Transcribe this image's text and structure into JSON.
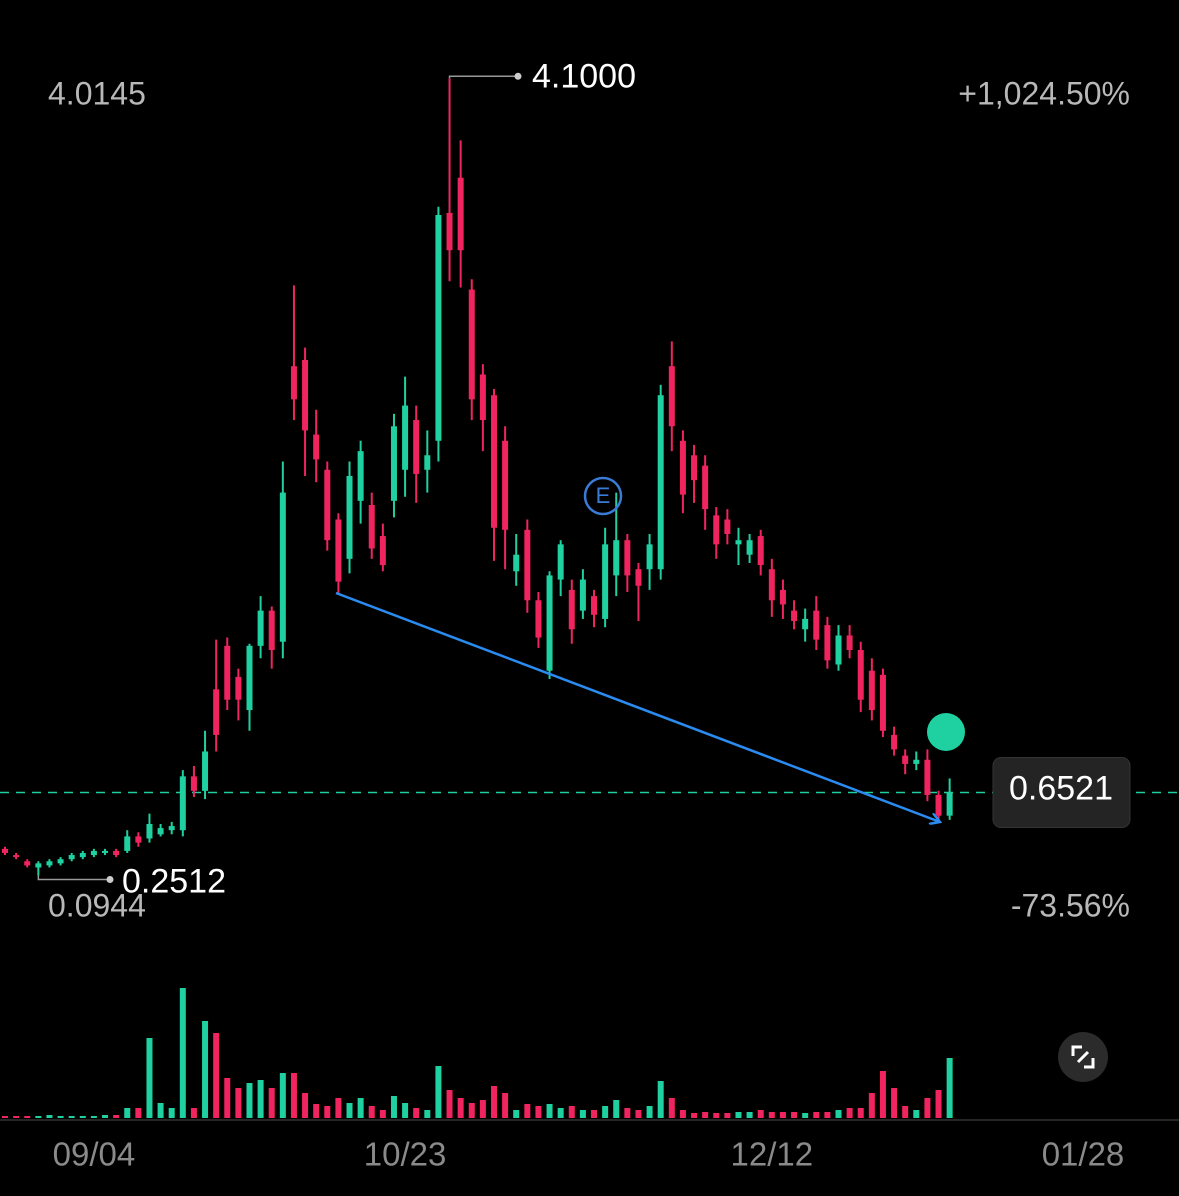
{
  "chart_data": {
    "type": "candlestick",
    "up_color": "#1fd1a0",
    "down_color": "#f0245f",
    "categories": [
      null,
      null,
      null,
      null,
      null,
      null,
      null,
      null,
      "09/04",
      null,
      null,
      null,
      null,
      null,
      null,
      null,
      null,
      null,
      null,
      null,
      null,
      null,
      null,
      null,
      null,
      null,
      null,
      null,
      null,
      null,
      null,
      null,
      null,
      null,
      null,
      null,
      "10/23",
      null,
      null,
      null,
      null,
      null,
      null,
      null,
      null,
      null,
      null,
      null,
      null,
      null,
      null,
      null,
      null,
      null,
      null,
      null,
      null,
      null,
      null,
      null,
      null,
      null,
      null,
      null,
      null,
      null,
      null,
      null,
      null,
      "12/12",
      null,
      null,
      null,
      null,
      null,
      null,
      null,
      null,
      null,
      null,
      null,
      null,
      null,
      null,
      null,
      null,
      null,
      null,
      null,
      null,
      null,
      null,
      null,
      null,
      null,
      null,
      null,
      "01/28"
    ],
    "open": [
      0.38,
      0.35,
      0.32,
      0.29,
      0.3,
      0.31,
      0.33,
      0.34,
      0.35,
      0.36,
      0.37,
      0.37,
      0.44,
      0.43,
      0.45,
      0.47,
      0.47,
      0.73,
      0.66,
      1.15,
      1.36,
      1.21,
      1.05,
      1.36,
      1.53,
      1.38,
      2.71,
      2.74,
      2.38,
      2.21,
      1.97,
      1.78,
      2.06,
      2.04,
      1.89,
      2.06,
      2.21,
      2.45,
      2.21,
      2.35,
      3.45,
      3.62,
      3.08,
      2.67,
      2.57,
      2.35,
      1.72,
      1.92,
      1.58,
      1.24,
      1.68,
      1.63,
      1.53,
      1.6,
      1.49,
      1.7,
      1.87,
      1.73,
      1.73,
      1.73,
      2.71,
      2.35,
      2.28,
      2.23,
      1.99,
      1.97,
      1.85,
      1.8,
      1.89,
      1.73,
      1.63,
      1.53,
      1.44,
      1.53,
      1.46,
      1.27,
      1.41,
      1.34,
      1.24,
      1.22,
      0.93,
      0.83,
      0.79,
      0.81,
      0.64,
      0.54,
      null,
      null,
      null,
      null,
      null,
      null,
      null,
      null,
      null,
      null,
      null,
      null
    ],
    "high": [
      0.39,
      0.36,
      0.33,
      0.32,
      0.33,
      0.34,
      0.36,
      0.37,
      0.38,
      0.38,
      0.38,
      0.47,
      0.46,
      0.55,
      0.5,
      0.51,
      0.76,
      0.78,
      0.95,
      1.39,
      1.4,
      1.25,
      1.37,
      1.6,
      1.55,
      2.25,
      3.1,
      2.8,
      2.5,
      2.25,
      2.0,
      2.25,
      2.35,
      2.1,
      1.95,
      2.48,
      2.66,
      2.52,
      2.4,
      3.48,
      4.1,
      3.8,
      3.13,
      2.72,
      2.6,
      2.42,
      1.9,
      1.97,
      1.62,
      1.72,
      1.87,
      1.68,
      1.73,
      1.63,
      1.93,
      2.1,
      1.9,
      1.76,
      1.9,
      2.62,
      2.83,
      2.4,
      2.33,
      2.28,
      2.03,
      2.02,
      1.93,
      1.9,
      1.92,
      1.78,
      1.68,
      1.58,
      1.54,
      1.6,
      1.5,
      1.46,
      1.46,
      1.38,
      1.3,
      1.25,
      0.97,
      0.86,
      0.85,
      0.86,
      0.66,
      0.72,
      null,
      null,
      null,
      null,
      null,
      null,
      null,
      null,
      null,
      null,
      null,
      null
    ],
    "low": [
      0.35,
      0.33,
      0.29,
      0.2512,
      0.29,
      0.3,
      0.32,
      0.33,
      0.34,
      0.35,
      0.34,
      0.36,
      0.39,
      0.41,
      0.44,
      0.45,
      0.44,
      0.63,
      0.62,
      0.85,
      1.05,
      1.0,
      0.95,
      1.3,
      1.25,
      1.3,
      2.45,
      2.18,
      2.15,
      1.82,
      1.61,
      1.71,
      1.95,
      1.78,
      1.72,
      1.98,
      2.08,
      2.05,
      2.1,
      2.25,
      3.12,
      3.09,
      2.45,
      2.3,
      1.77,
      1.73,
      1.65,
      1.52,
      1.35,
      1.2,
      1.6,
      1.37,
      1.49,
      1.45,
      1.45,
      1.6,
      1.62,
      1.48,
      1.63,
      1.68,
      2.3,
      2.0,
      2.05,
      1.92,
      1.78,
      1.85,
      1.75,
      1.76,
      1.7,
      1.5,
      1.49,
      1.44,
      1.38,
      1.34,
      1.25,
      1.24,
      1.3,
      1.04,
      1.0,
      0.92,
      0.83,
      0.74,
      0.76,
      0.61,
      0.51,
      0.52,
      null,
      null,
      null,
      null,
      null,
      null,
      null,
      null,
      null,
      null,
      null,
      null
    ],
    "close": [
      0.36,
      0.34,
      0.3,
      0.31,
      0.32,
      0.33,
      0.35,
      0.36,
      0.37,
      0.37,
      0.35,
      0.44,
      0.41,
      0.5,
      0.48,
      0.49,
      0.73,
      0.66,
      0.85,
      0.93,
      1.1,
      1.1,
      1.36,
      1.53,
      1.34,
      2.1,
      2.55,
      2.4,
      2.26,
      1.87,
      1.67,
      2.18,
      2.3,
      1.83,
      1.75,
      2.42,
      2.52,
      2.19,
      2.28,
      3.44,
      3.27,
      3.27,
      2.55,
      2.45,
      1.93,
      1.92,
      1.8,
      1.58,
      1.4,
      1.7,
      1.85,
      1.44,
      1.68,
      1.51,
      1.85,
      1.87,
      1.7,
      1.65,
      1.85,
      2.57,
      2.42,
      2.09,
      2.16,
      2.02,
      1.85,
      1.9,
      1.87,
      1.87,
      1.75,
      1.58,
      1.56,
      1.48,
      1.49,
      1.39,
      1.29,
      1.41,
      1.34,
      1.1,
      1.05,
      0.95,
      0.86,
      0.79,
      0.81,
      0.64,
      0.54,
      0.6521,
      null,
      null,
      null,
      null,
      null,
      null,
      null,
      null,
      null,
      null,
      null,
      null
    ],
    "volume": [
      2,
      2,
      2,
      2,
      3,
      2,
      2,
      2,
      2,
      3,
      3,
      10,
      10,
      80,
      15,
      10,
      130,
      10,
      97,
      85,
      40,
      30,
      35,
      38,
      30,
      45,
      45,
      25,
      14,
      12,
      20,
      15,
      20,
      12,
      8,
      22,
      15,
      10,
      8,
      52,
      28,
      20,
      15,
      18,
      32,
      25,
      8,
      14,
      12,
      14,
      10,
      12,
      8,
      8,
      12,
      18,
      10,
      8,
      12,
      37,
      20,
      8,
      5,
      6,
      5,
      5,
      6,
      6,
      8,
      6,
      6,
      6,
      5,
      6,
      6,
      8,
      10,
      10,
      25,
      47,
      30,
      12,
      8,
      20,
      28,
      60,
      null,
      null,
      null,
      null,
      null,
      null,
      null,
      null,
      null,
      null,
      null,
      null
    ],
    "ylim": [
      0.0944,
      4.0145
    ],
    "yticks": [
      0.0944,
      4.0145
    ],
    "y2lim": [
      -73.56,
      1024.5
    ],
    "y2ticks": [
      {
        "value": -73.56,
        "label": "-73.56%"
      },
      {
        "value": 1024.5,
        "label": "+1,024.50%"
      }
    ],
    "high_marker": {
      "value": 4.1,
      "label": "4.1000"
    },
    "low_marker": {
      "value": 0.2512,
      "label": "0.2512"
    },
    "last_price": {
      "value": 0.6521,
      "label": "0.6521"
    },
    "event_marker": "E"
  }
}
